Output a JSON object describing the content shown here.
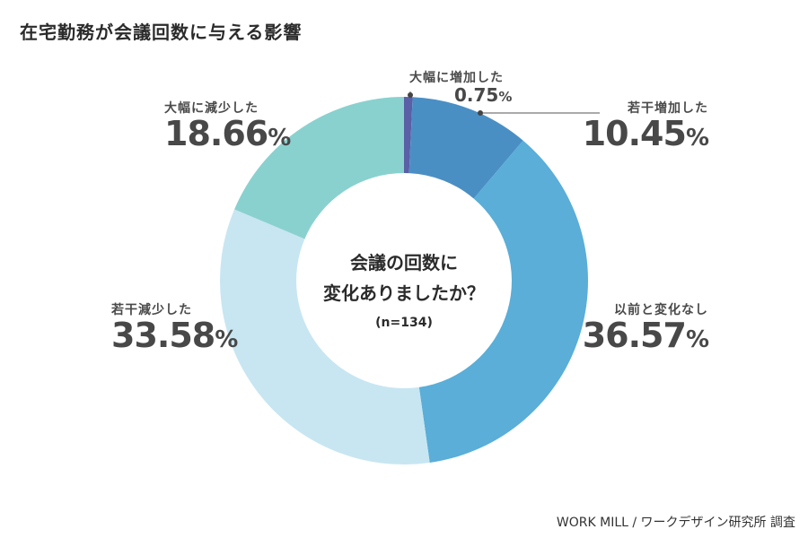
{
  "title": "在宅勤務が会議回数に与える影響",
  "center": {
    "question_line1": "会議の回数に",
    "question_line2": "変化ありましたか？",
    "n": "(n=134)"
  },
  "source": "WORK MILL / ワークデザイン研究所 調査",
  "labels": {
    "greatly_increased": {
      "category": "大幅に増加した",
      "value": "0.75",
      "unit": "%"
    },
    "slightly_increased": {
      "category": "若干増加した",
      "value": "10.45",
      "unit": "%"
    },
    "unchanged": {
      "category": "以前と変化なし",
      "value": "36.57",
      "unit": "%"
    },
    "slightly_decreased": {
      "category": "若干減少した",
      "value": "33.58",
      "unit": "%"
    },
    "greatly_decreased": {
      "category": "大幅に減少した",
      "value": "18.66",
      "unit": "%"
    }
  },
  "chart_data": {
    "type": "pie",
    "title": "在宅勤務が会議回数に与える影響",
    "categories": [
      "大幅に増加した",
      "若干増加した",
      "以前と変化なし",
      "若干減少した",
      "大幅に減少した"
    ],
    "values": [
      0.75,
      10.45,
      36.57,
      33.58,
      18.66
    ],
    "colors": [
      "#5a5fa6",
      "#4a8fc4",
      "#5aaed8",
      "#c7e6f2",
      "#89d1cf"
    ],
    "unit": "%",
    "start_angle_deg": 0,
    "direction": "clockwise"
  }
}
